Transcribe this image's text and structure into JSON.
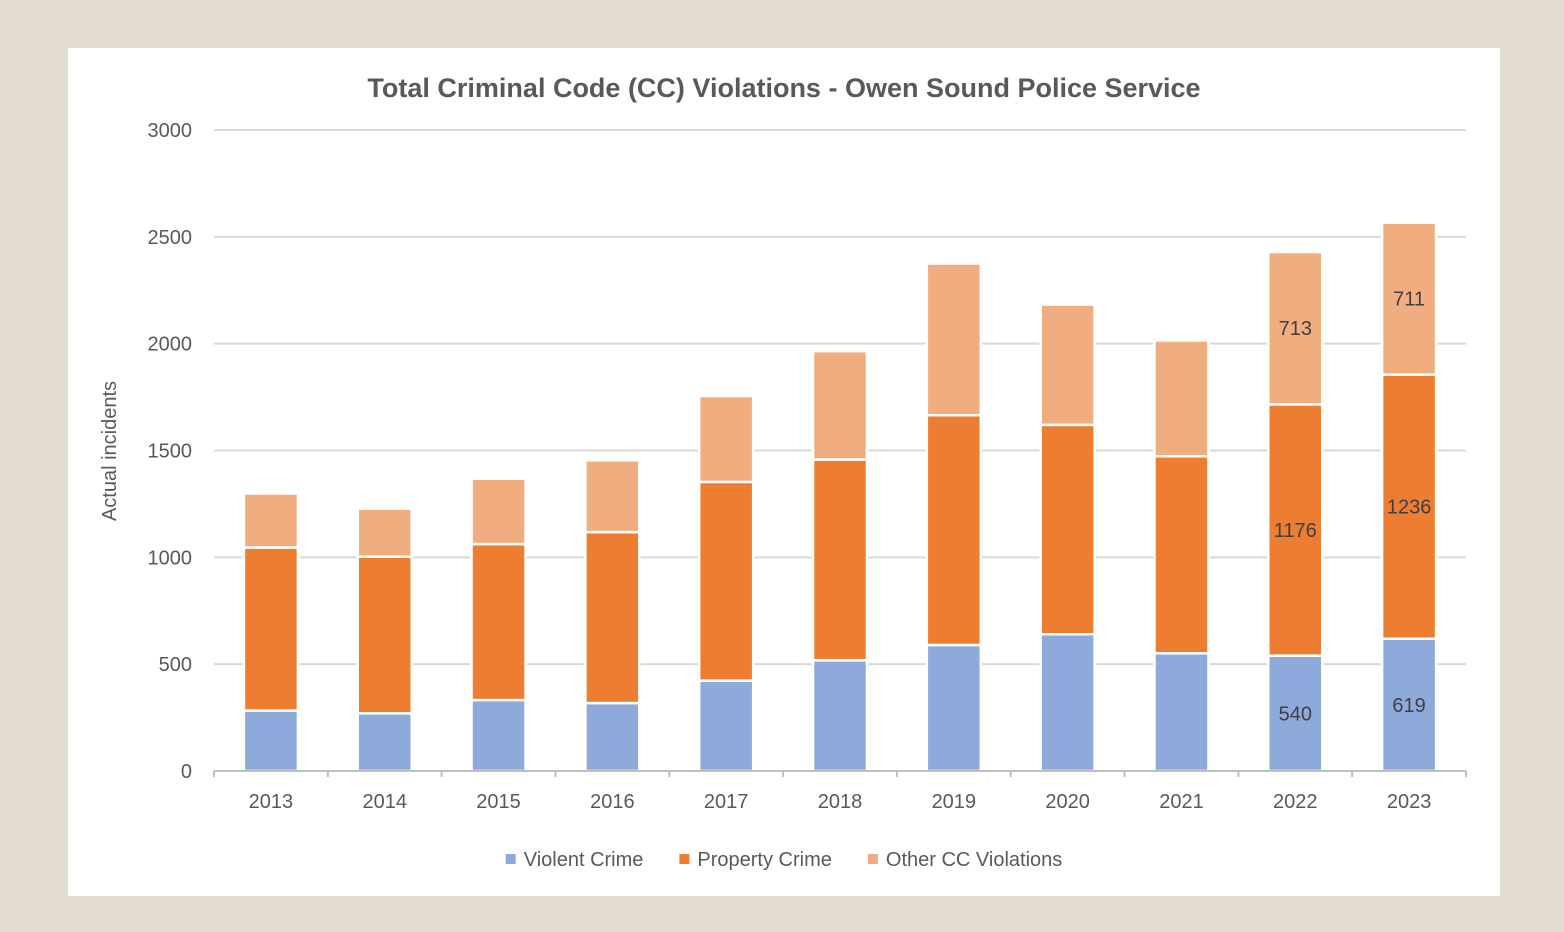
{
  "chart_data": {
    "type": "bar",
    "stacked": true,
    "title": "Total Criminal Code (CC) Violations - Owen Sound Police Service",
    "xlabel": "",
    "ylabel": "Actual incidents",
    "ylim": [
      0,
      3000
    ],
    "yticks": [
      0,
      500,
      1000,
      1500,
      2000,
      2500,
      3000
    ],
    "grid": true,
    "legend_position": "bottom",
    "categories": [
      "2013",
      "2014",
      "2015",
      "2016",
      "2017",
      "2018",
      "2019",
      "2020",
      "2021",
      "2022",
      "2023"
    ],
    "series": [
      {
        "name": "Violent Crime",
        "color": "#8eaadb",
        "values": [
          283,
          270,
          332,
          318,
          423,
          518,
          590,
          640,
          551,
          540,
          619
        ]
      },
      {
        "name": "Property Crime",
        "color": "#ed7d31",
        "values": [
          763,
          733,
          730,
          800,
          930,
          940,
          1075,
          980,
          922,
          1176,
          1236
        ]
      },
      {
        "name": "Other CC Violations",
        "color": "#f0ae80",
        "values": [
          253,
          225,
          306,
          336,
          402,
          507,
          710,
          563,
          542,
          713,
          711
        ]
      }
    ],
    "data_labels": [
      {
        "category": "2022",
        "series": "Violent Crime",
        "text": "540"
      },
      {
        "category": "2022",
        "series": "Property Crime",
        "text": "1176"
      },
      {
        "category": "2022",
        "series": "Other CC Violations",
        "text": "713"
      },
      {
        "category": "2023",
        "series": "Violent Crime",
        "text": "619"
      },
      {
        "category": "2023",
        "series": "Property Crime",
        "text": "1236"
      },
      {
        "category": "2023",
        "series": "Other CC Violations",
        "text": "711"
      }
    ]
  }
}
